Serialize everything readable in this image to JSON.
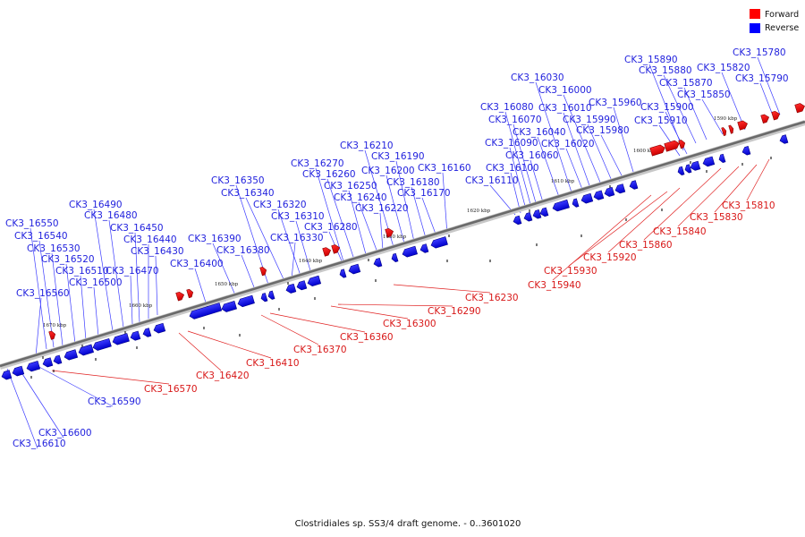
{
  "caption": "Clostridiales sp. SS3/4 draft genome. - 0..3601020",
  "legend": [
    {
      "label": "Forward",
      "color": "#ff0000"
    },
    {
      "label": "Reverse",
      "color": "#0000ff"
    }
  ],
  "ticks": [
    "1590 kbp",
    "1600 kbp",
    "1610 kbp",
    "1620 kbp",
    "1630 kbp",
    "1640 kbp",
    "1650 kbp",
    "1660 kbp",
    "1670 kbp"
  ],
  "reverse_genes": [
    "CK3_15780",
    "CK3_15790",
    "CK3_15820",
    "CK3_15850",
    "CK3_15870",
    "CK3_15880",
    "CK3_15890",
    "CK3_15900",
    "CK3_15910",
    "CK3_15960",
    "CK3_15980",
    "CK3_15990",
    "CK3_16000",
    "CK3_16010",
    "CK3_16020",
    "CK3_16030",
    "CK3_16040",
    "CK3_16060",
    "CK3_16070",
    "CK3_16080",
    "CK3_16090",
    "CK3_16100",
    "CK3_16110",
    "CK3_16160",
    "CK3_16170",
    "CK3_16180",
    "CK3_16190",
    "CK3_16200",
    "CK3_16210",
    "CK3_16220",
    "CK3_16240",
    "CK3_16250",
    "CK3_16260",
    "CK3_16270",
    "CK3_16280",
    "CK3_16310",
    "CK3_16320",
    "CK3_16330",
    "CK3_16340",
    "CK3_16350",
    "CK3_16380",
    "CK3_16390",
    "CK3_16400",
    "CK3_16430",
    "CK3_16440",
    "CK3_16450",
    "CK3_16470",
    "CK3_16480",
    "CK3_16490",
    "CK3_16500",
    "CK3_16510",
    "CK3_16520",
    "CK3_16530",
    "CK3_16540",
    "CK3_16550",
    "CK3_16560",
    "CK3_16590",
    "CK3_16600",
    "CK3_16610"
  ],
  "forward_genes": [
    "CK3_15810",
    "CK3_15830",
    "CK3_15840",
    "CK3_15860",
    "CK3_15920",
    "CK3_15930",
    "CK3_15940",
    "CK3_16230",
    "CK3_16290",
    "CK3_16300",
    "CK3_16360",
    "CK3_16370",
    "CK3_16410",
    "CK3_16420",
    "CK3_16570"
  ]
}
